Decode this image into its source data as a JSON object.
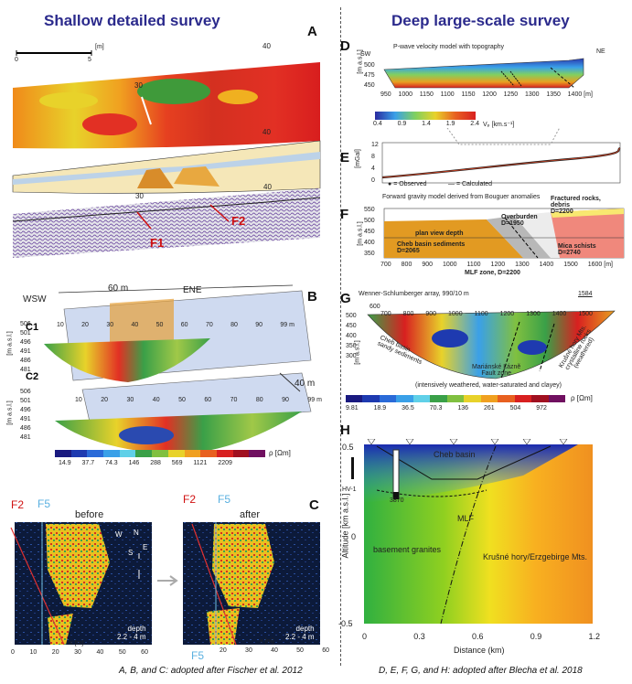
{
  "left_title": "Shallow detailed survey",
  "right_title": "Deep large-scale survey",
  "panels": {
    "A": "A",
    "B": "B",
    "C": "C",
    "D": "D",
    "E": "E",
    "F": "F",
    "G": "G",
    "H": "H"
  },
  "panelA": {
    "scale_ticks": [
      "0",
      "5"
    ],
    "scale_unit": "[m]",
    "marks_top": [
      "30",
      "40"
    ],
    "marks_mid": [
      "40"
    ],
    "marks_bottom": [
      "30",
      "40"
    ],
    "faults": [
      "F1",
      "F2"
    ]
  },
  "panelB": {
    "wsw": "WSW",
    "ene": "ENE",
    "width": "60 m",
    "depth": "40 m",
    "c1": "C1",
    "c2": "C2",
    "ylabel": "[m a.s.l.]",
    "yticks_c1": [
      "506",
      "501",
      "496",
      "491",
      "486",
      "481"
    ],
    "yticks_c2": [
      "506",
      "501",
      "496",
      "491",
      "486",
      "481"
    ],
    "xticks_c1": [
      "10",
      "20",
      "30",
      "40",
      "50",
      "60",
      "70",
      "80",
      "90",
      "99 m"
    ],
    "xticks_c2": [
      "10",
      "20",
      "30",
      "40",
      "50",
      "60",
      "70",
      "80",
      "90",
      "99 m"
    ],
    "colorbar_ticks": [
      "14.9",
      "37.7",
      "74.3",
      "146",
      "288",
      "569",
      "1121",
      "2209"
    ],
    "colorbar_unit": "ρ [Ωm]"
  },
  "panelC": {
    "before": "before",
    "after": "after",
    "f2": "F2",
    "f5": "F5",
    "depth": "depth",
    "depth_range": "2.2 - 4 m",
    "xlabel": "x [m]",
    "xticks": [
      "0",
      "10",
      "20",
      "30",
      "40",
      "50",
      "60"
    ],
    "xticks2": [
      "20",
      "30",
      "40",
      "50",
      "60"
    ],
    "compass": [
      "N",
      "E",
      "S",
      "W"
    ]
  },
  "panelD": {
    "title": "P-wave velocity model with topography",
    "sw": "SW",
    "ne": "NE",
    "ylabel": "[m a.s.l.]",
    "yticks": [
      "500",
      "475",
      "450"
    ],
    "xticks": [
      "950",
      "1000",
      "1150",
      "1100",
      "1150",
      "1200",
      "1250",
      "1300",
      "1350",
      "1400 [m]"
    ],
    "colorbar_ticks": [
      "0.4",
      "0.9",
      "1.4",
      "1.9",
      "2.4"
    ],
    "colorbar_unit": "Vₚ [km.s⁻¹]"
  },
  "panelE": {
    "ylabel": "[mGal]",
    "yticks": [
      "12",
      "8",
      "4",
      "0"
    ],
    "legend_observed": "= Observed",
    "legend_calculated": "= Calculated"
  },
  "panelF": {
    "title": "Forward gravity model derived from Bouguer anomalies",
    "ylabel": "[m a.s.l.]",
    "yticks": [
      "550",
      "500",
      "450",
      "400",
      "350"
    ],
    "xticks": [
      "700",
      "800",
      "900",
      "1000",
      "1100",
      "1200",
      "1300",
      "1400",
      "1500",
      "1600 [m]"
    ],
    "plan_view": "plan view depth",
    "cheb": "Cheb basin sediments",
    "cheb_d": "D=2065",
    "overburden": "Overburden",
    "overburden_d": "D=1950",
    "fractured": "Fractured rocks,",
    "fractured2": "debris",
    "fractured_d": "D=2200",
    "mica": "Mica schists",
    "mica_d": "D=2740",
    "mlf": "MLF zone, D=2200"
  },
  "panelG": {
    "title": "Wenner-Schlumberger array, 990/10 m",
    "ylabel": "[m a.s.l.]",
    "yticks": [
      "500",
      "450",
      "400",
      "350",
      "300"
    ],
    "xticks_top": [
      "600",
      "1584"
    ],
    "xticks": [
      "700",
      "800",
      "900",
      "1000",
      "1100",
      "1200",
      "1300",
      "1400",
      "1500"
    ],
    "cheb": "Cheb basin",
    "cheb2": "sandy sediments",
    "mlf": "Mariánské Lázně",
    "mlf2": "Fault zone",
    "mlf3": "(intensively weathered, water-saturated and clayey)",
    "krus": "Krušné hory Mts.",
    "krus2": "crystalline rocks",
    "krus3": "(weathered)",
    "colorbar_ticks": [
      "9.81",
      "18.9",
      "36.5",
      "70.3",
      "136",
      "261",
      "504",
      "972"
    ],
    "colorbar_unit": "ρ [Ωm]"
  },
  "panelH": {
    "ylabel": "Altitude [km a.s.l.]",
    "xlabel": "Distance (km)",
    "yticks": [
      "0.5",
      "0",
      "-0.5"
    ],
    "xticks": [
      "0",
      "0.3",
      "0.6",
      "0.9",
      "1.2"
    ],
    "cheb": "Cheb basin",
    "hv1": "HV-1",
    "depth_mark": "3870",
    "mlf": "MLF",
    "granites": "basement granites",
    "krus": "Krušné hory/Erzgebirge Mts."
  },
  "footer_left": "A, B, and C: adopted after Fischer et al. 2012",
  "footer_right": "D, E, F, G, and H: adopted after Blecha et al. 2018"
}
